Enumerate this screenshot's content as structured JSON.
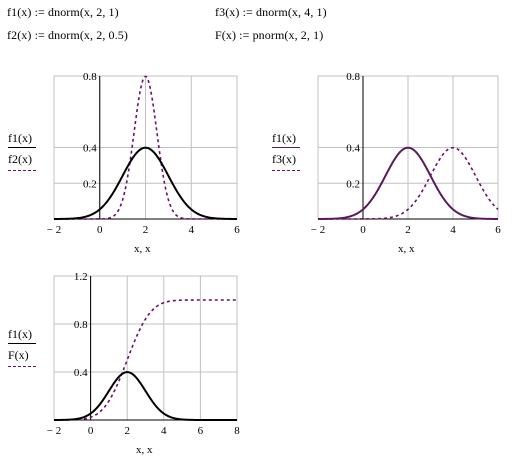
{
  "definitions": {
    "f1": "f1(x) := dnorm(x, 2, 1)",
    "f2": "f2(x) := dnorm(x, 2, 0.5)",
    "f3": "f3(x) := dnorm(x, 4, 1)",
    "F": "F(x) := pnorm(x, 2, 1)"
  },
  "colors": {
    "solid_black": "#000000",
    "dashed": "#6b0f6b",
    "solid_purple": "#5a1a5a",
    "grid": "#c0c0c0",
    "axis_dark": "#000000"
  },
  "chart_data": [
    {
      "type": "line",
      "xlim": [
        -2,
        6
      ],
      "ylim": [
        0,
        0.8
      ],
      "xticks": [
        -2,
        0,
        2,
        4,
        6
      ],
      "yticks": [
        0.2,
        0.4,
        0.8
      ],
      "xtick_labels": [
        "− 2",
        "0",
        "2",
        "4",
        "6"
      ],
      "ytick_labels": [
        "0.2",
        "0.4",
        "0.8"
      ],
      "xlabel": "x, x",
      "grid": true,
      "series": [
        {
          "name": "f1(x)",
          "style": "solid",
          "dist": "dnorm",
          "mean": 2,
          "sd": 1
        },
        {
          "name": "f2(x)",
          "style": "dashed",
          "dist": "dnorm",
          "mean": 2,
          "sd": 0.5
        }
      ]
    },
    {
      "type": "line",
      "xlim": [
        -2,
        6
      ],
      "ylim": [
        0,
        0.8
      ],
      "xticks": [
        -2,
        0,
        2,
        4,
        6
      ],
      "yticks": [
        0.2,
        0.4,
        0.8
      ],
      "xtick_labels": [
        "− 2",
        "0",
        "2",
        "4",
        "6"
      ],
      "ytick_labels": [
        "0.2",
        "0.4",
        "0.8"
      ],
      "xlabel": "x, x",
      "grid": true,
      "series": [
        {
          "name": "f1(x)",
          "style": "solid-purple",
          "dist": "dnorm",
          "mean": 2,
          "sd": 1
        },
        {
          "name": "f3(x)",
          "style": "dashed",
          "dist": "dnorm",
          "mean": 4,
          "sd": 1
        }
      ]
    },
    {
      "type": "line",
      "xlim": [
        -2,
        8
      ],
      "ylim": [
        0,
        1.2
      ],
      "xticks": [
        -2,
        0,
        2,
        4,
        6,
        8
      ],
      "yticks": [
        0.4,
        0.8,
        1.2
      ],
      "xtick_labels": [
        "− 2",
        "0",
        "2",
        "4",
        "6",
        "8"
      ],
      "ytick_labels": [
        "0.4",
        "0.8",
        "1.2"
      ],
      "xlabel": "x, x",
      "grid": true,
      "series": [
        {
          "name": "f1(x)",
          "style": "solid",
          "dist": "dnorm",
          "mean": 2,
          "sd": 1
        },
        {
          "name": "F(x)",
          "style": "dashed",
          "dist": "pnorm",
          "mean": 2,
          "sd": 1
        }
      ]
    }
  ]
}
